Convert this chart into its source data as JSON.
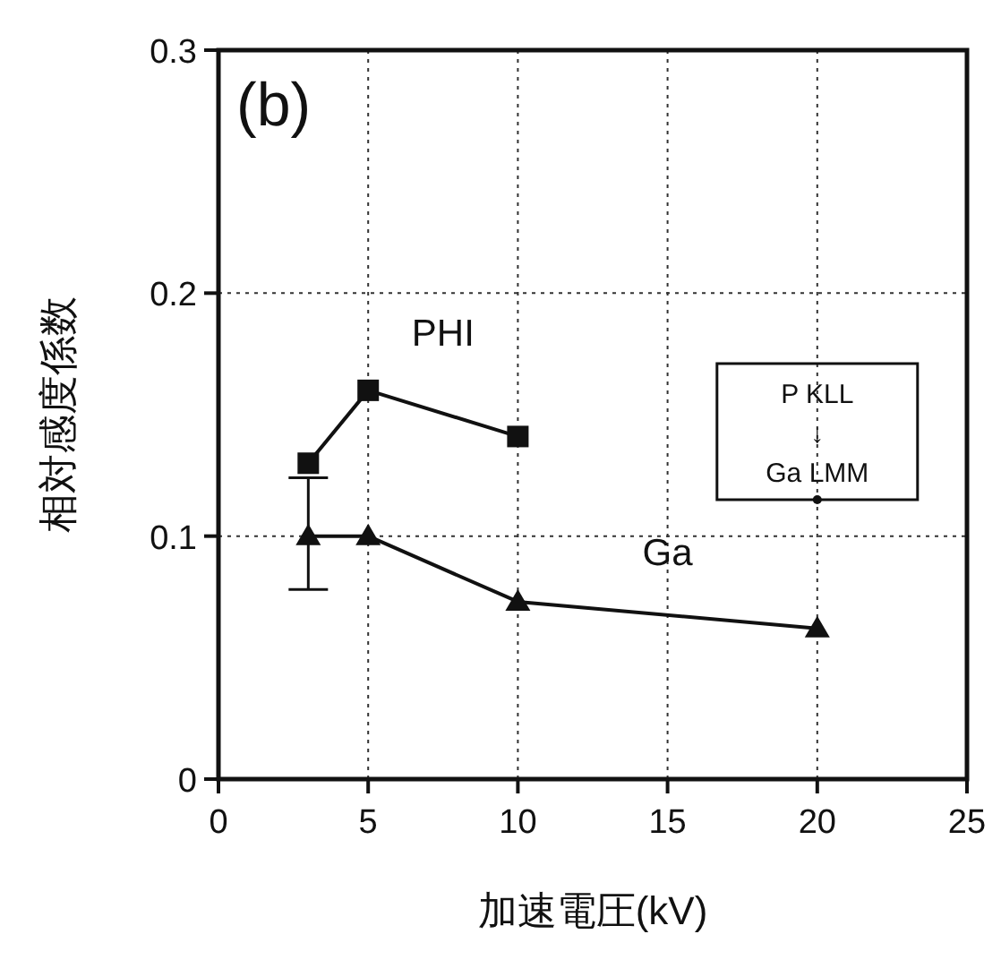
{
  "chart_data": {
    "type": "line",
    "title": "(b)",
    "xlabel": "加速電圧(kV)",
    "ylabel": "相対感度係数",
    "x": [
      3,
      5,
      10,
      20
    ],
    "series": [
      {
        "name": "PHI",
        "color": "#111111",
        "marker": "square",
        "values": [
          0.13,
          0.16,
          0.141,
          null
        ]
      },
      {
        "name": "Ga",
        "color": "#111111",
        "marker": "triangle",
        "values": [
          0.1,
          0.1,
          0.073,
          0.062
        ],
        "errors": [
          [
            0.078,
            0.124
          ],
          null,
          null,
          null
        ]
      }
    ],
    "annotations": [
      {
        "text": "P KLL\n↓\nGa LMM",
        "x": 20,
        "y": 0.115
      }
    ],
    "xlim": [
      0,
      25
    ],
    "xticks": [
      0,
      5,
      10,
      15,
      20,
      25
    ],
    "ylim": [
      0,
      0.3
    ],
    "yticks": [
      0,
      0.1,
      0.2,
      0.3
    ],
    "grid": true,
    "line_style": "solid"
  }
}
